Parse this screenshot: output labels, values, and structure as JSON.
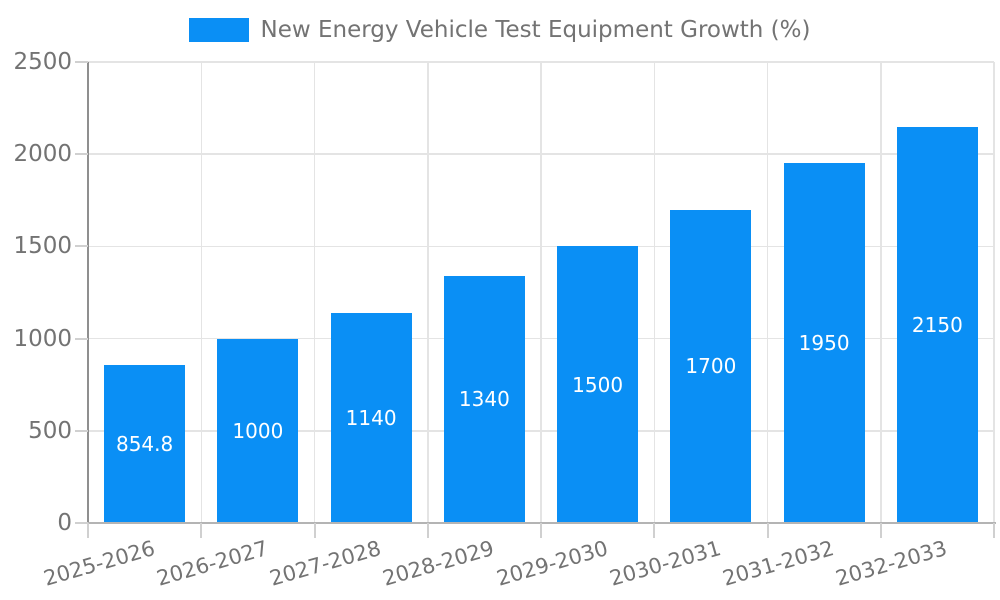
{
  "legend": {
    "series_label": "New Energy Vehicle Test Equipment Growth (%)"
  },
  "colors": {
    "bar": "#0a8ff5",
    "grid": "#e4e4e4",
    "axis_y": "#8f8f8f",
    "axis_x": "#b4b4b4",
    "tick": "#d0d0d0",
    "tick_label": "#737373",
    "value_label": "#ffffff",
    "background": "#ffffff"
  },
  "chart_data": {
    "type": "bar",
    "title": "New Energy Vehicle Test Equipment Growth (%)",
    "categories": [
      "2025-2026",
      "2026-2027",
      "2027-2028",
      "2028-2029",
      "2029-2030",
      "2030-2031",
      "2031-2032",
      "2032-2033"
    ],
    "values": [
      854.8,
      1000,
      1140,
      1340,
      1500,
      1700,
      1950,
      2150
    ],
    "value_labels": [
      "854.8",
      "1000",
      "1140",
      "1340",
      "1500",
      "1700",
      "1950",
      "2150"
    ],
    "xlabel": "",
    "ylabel": "",
    "ylim": [
      0,
      2500
    ],
    "yticks": [
      0,
      500,
      1000,
      1500,
      2000,
      2500
    ],
    "grid": true,
    "legend_position": "top-center",
    "x_tick_rotation_deg": -16,
    "value_label_position": "center-inside"
  }
}
